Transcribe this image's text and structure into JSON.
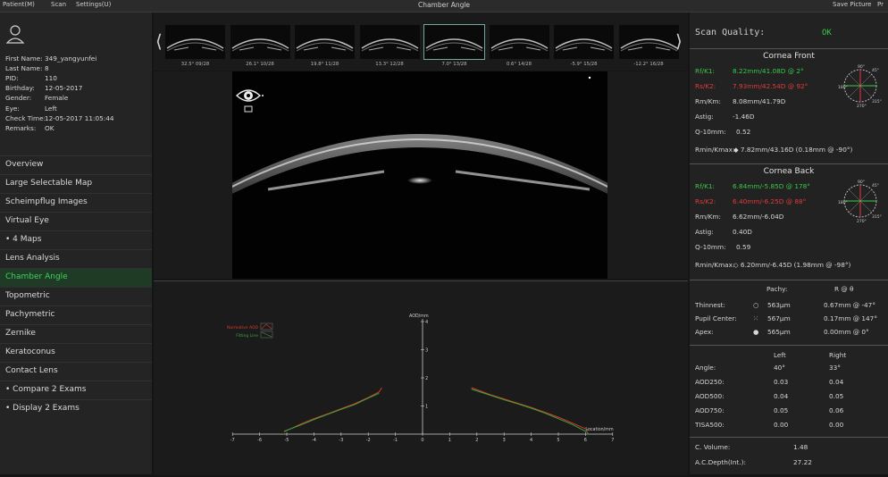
{
  "menubar": {
    "items": [
      "Patient(M)",
      "Scan",
      "Settings(U)"
    ],
    "title": "Chamber Angle",
    "right_items": [
      "Save Picture",
      "Pr"
    ]
  },
  "patient": {
    "fields": [
      {
        "k": "First Name:",
        "v": "349_yangyunfei"
      },
      {
        "k": "Last Name:",
        "v": "8"
      },
      {
        "k": "PID:",
        "v": "110"
      },
      {
        "k": "Birthday:",
        "v": "12-05-2017"
      },
      {
        "k": "Gender:",
        "v": "Female"
      },
      {
        "k": "Eye:",
        "v": "Left"
      },
      {
        "k": "Check Time:",
        "v": "12-05-2017 11:05:44"
      },
      {
        "k": "Remarks:",
        "v": "OK"
      }
    ]
  },
  "nav": {
    "items": [
      "Overview",
      "Large Selectable Map",
      "Scheimpflug Images",
      "Virtual Eye",
      "•  4 Maps",
      "Lens Analysis",
      "Chamber Angle",
      "Topometric",
      "Pachymetric",
      "Zernike",
      "Keratoconus",
      "Contact Lens",
      "•  Compare 2 Exams",
      "•  Display 2 Exams"
    ],
    "active_index": 6
  },
  "thumbnails": [
    "32.5°  09/28",
    "26.1°  10/28",
    "19.8°  11/28",
    "13.3°  12/28",
    "7.0°  13/28",
    "0.6°  14/28",
    "-5.9°  15/28",
    "-12.2°  16/28"
  ],
  "thumb_selected": 4,
  "arrows": {
    "left": "⟨",
    "right": "⟩"
  },
  "scan_quality": {
    "label": "Scan Quality:",
    "value": "OK"
  },
  "cornea_front": {
    "title": "Cornea Front",
    "rows": [
      {
        "k": "Rf/K1:",
        "v": "8.22mm/41.08D @ 2°",
        "color": "#39c946"
      },
      {
        "k": "Rs/K2:",
        "v": "7.93mm/42.54D @ 92°",
        "color": "#e23b3b"
      },
      {
        "k": "Rm/Km:",
        "v": "8.08mm/41.79D",
        "color": "#d6d6d6"
      },
      {
        "k": "Astig:",
        "v": "-1.46D",
        "color": "#d6d6d6"
      },
      {
        "k": "Q-10mm:",
        "v": "0.52",
        "color": "#d6d6d6"
      }
    ],
    "rmin": {
      "k": "Rmin/Kmax:",
      "v": "◆ 7.82mm/43.16D (0.18mm @ -90°)"
    }
  },
  "cornea_back": {
    "title": "Cornea Back",
    "rows": [
      {
        "k": "Rf/K1:",
        "v": "6.84mm/-5.85D @ 178°",
        "color": "#39c946"
      },
      {
        "k": "Rs/K2:",
        "v": "6.40mm/-6.25D @ 88°",
        "color": "#e23b3b"
      },
      {
        "k": "Rm/Km:",
        "v": "6.62mm/-6.04D",
        "color": "#d6d6d6"
      },
      {
        "k": "Astig:",
        "v": "0.40D",
        "color": "#d6d6d6"
      },
      {
        "k": "Q-10mm:",
        "v": "0.59",
        "color": "#d6d6d6"
      }
    ],
    "rmin": {
      "k": "Rmin/Kmax:",
      "v": "◇ 6.20mm/-6.45D (1.98mm @ -98°)"
    }
  },
  "dial_labels": {
    "top": "90°",
    "tr": "45°",
    "left": "180°",
    "right": "0°",
    "bottom": "270°",
    "br": "315°"
  },
  "pachy": {
    "headers": [
      "Pachy:",
      "R @ θ"
    ],
    "rows": [
      {
        "k": "Thinnest:",
        "sym": "○",
        "v": "563μm",
        "r": "0.67mm @ -47°"
      },
      {
        "k": "Pupil Center:",
        "sym": "⁙",
        "v": "567μm",
        "r": "0.17mm @ 147°"
      },
      {
        "k": "Apex:",
        "sym": "●",
        "v": "565μm",
        "r": "0.00mm @ 0°"
      }
    ]
  },
  "angle": {
    "headers": [
      "Left",
      "Right"
    ],
    "rows": [
      {
        "k": "Angle:",
        "l": "40°",
        "r": "33°"
      },
      {
        "k": "AOD250:",
        "l": "0.03",
        "r": "0.04"
      },
      {
        "k": "AOD500:",
        "l": "0.04",
        "r": "0.05"
      },
      {
        "k": "AOD750:",
        "l": "0.05",
        "r": "0.06"
      },
      {
        "k": "TISA500:",
        "l": "0.00",
        "r": "0.00"
      }
    ]
  },
  "volume": [
    {
      "k": "C. Volume:",
      "v": "1.48"
    },
    {
      "k": "A.C.Depth(Int.):",
      "v": "27.22"
    }
  ],
  "chart_data": {
    "type": "line",
    "xlabel": "Location/mm",
    "ylabel": "AOD/mm",
    "xlim": [
      -7,
      7
    ],
    "ylim": [
      0,
      4
    ],
    "xticks": [
      -7,
      -6,
      -5,
      -4,
      -3,
      -2,
      -1,
      0,
      1,
      2,
      3,
      4,
      5,
      6,
      7
    ],
    "yticks": [
      1,
      2,
      3,
      4
    ],
    "legend": [
      "Normative AOD",
      "Fitting Line"
    ],
    "series": [
      {
        "name": "Normative AOD",
        "color": "#d83a2a",
        "x": [
          -5.1,
          -4.5,
          -4.0,
          -3.5,
          -3.0,
          -2.5,
          -2.0,
          -1.6,
          -1.5
        ],
        "y": [
          0.08,
          0.35,
          0.55,
          0.72,
          0.9,
          1.08,
          1.3,
          1.5,
          1.65
        ]
      },
      {
        "name": "Fitting Line",
        "color": "#3aa63a",
        "x": [
          -5.1,
          -4.5,
          -4.0,
          -3.5,
          -3.0,
          -2.5,
          -2.0,
          -1.6
        ],
        "y": [
          0.1,
          0.32,
          0.52,
          0.7,
          0.88,
          1.05,
          1.28,
          1.45
        ]
      },
      {
        "name": "Normative AOD",
        "color": "#d83a2a",
        "x": [
          1.8,
          2.5,
          3.0,
          3.5,
          4.0,
          4.5,
          5.0,
          5.5,
          6.1
        ],
        "y": [
          1.65,
          1.4,
          1.25,
          1.1,
          0.95,
          0.78,
          0.6,
          0.4,
          0.15
        ]
      },
      {
        "name": "Fitting Line",
        "color": "#3aa63a",
        "x": [
          1.8,
          2.5,
          3.0,
          3.5,
          4.0,
          4.5,
          5.0,
          5.5,
          6.1
        ],
        "y": [
          1.6,
          1.38,
          1.22,
          1.08,
          0.92,
          0.75,
          0.55,
          0.35,
          0.05
        ]
      }
    ]
  }
}
